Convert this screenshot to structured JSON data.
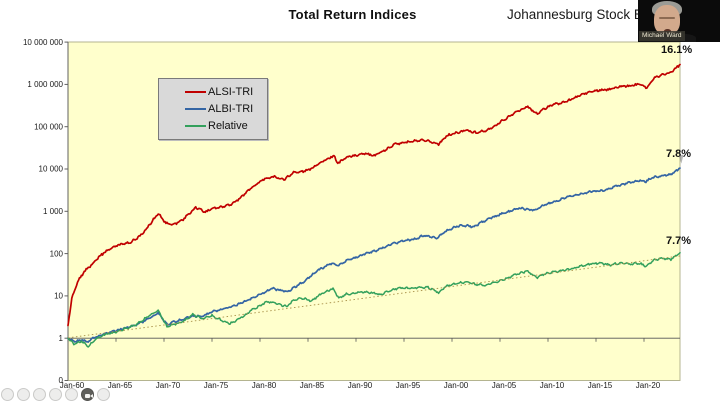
{
  "header": {
    "title": "Total Return Indices",
    "subtitle": "Johannesburg Stock Ex"
  },
  "video_overlay": {
    "participant_name": "Michael Ward"
  },
  "legend": {
    "items": [
      {
        "label": "ALSI-TRI",
        "color": "#c00000"
      },
      {
        "label": "ALBI-TRI",
        "color": "#3465a4"
      },
      {
        "label": "Relative",
        "color": "#33a05c"
      }
    ]
  },
  "toolbar": {
    "icons": [
      "pointer",
      "pen",
      "text",
      "eraser",
      "shapes",
      "camera",
      "more"
    ]
  },
  "chart_data": {
    "type": "line",
    "title": "Total Return Indices",
    "subtitle": "Johannesburg Stock Ex",
    "plot_background": "#ffffcc",
    "y_axis": {
      "scale": "log",
      "tick_labels": [
        "10 000 000",
        "1 000 000",
        "100 000",
        "10 000",
        "1 000",
        "100",
        "10",
        "1",
        "0"
      ],
      "tick_values": [
        10000000,
        1000000,
        100000,
        10000,
        1000,
        100,
        10,
        1,
        0.1
      ],
      "range": [
        0.1,
        10000000
      ]
    },
    "x_axis": {
      "tick_labels": [
        "Jan-60",
        "Jan-65",
        "Jan-70",
        "Jan-75",
        "Jan-80",
        "Jan-85",
        "Jan-90",
        "Jan-95",
        "Jan-00",
        "Jan-05",
        "Jan-10",
        "Jan-15",
        "Jan-20"
      ],
      "tick_years": [
        1960,
        1965,
        1970,
        1975,
        1980,
        1985,
        1990,
        1995,
        2000,
        2005,
        2010,
        2015,
        2020
      ],
      "range": [
        1960,
        2023.75
      ],
      "crosses_at_value": 1
    },
    "annotations": [
      {
        "text": "16.1%",
        "series": "ALSI-TRI"
      },
      {
        "text": "7.8%",
        "series": "ALBI-TRI"
      },
      {
        "text": "7.7%",
        "series": "Relative"
      }
    ],
    "trendline": {
      "series": "Relative",
      "style": "dotted",
      "color": "#a89048",
      "points": [
        [
          1960,
          1.02
        ],
        [
          2023.75,
          88
        ]
      ]
    },
    "series": [
      {
        "name": "ALSI-TRI",
        "color": "#c00000",
        "width": 1.7,
        "jitter": 1.6,
        "points": [
          [
            1960,
            2
          ],
          [
            1960.4,
            9
          ],
          [
            1961,
            22
          ],
          [
            1961.8,
            40
          ],
          [
            1962.5,
            55
          ],
          [
            1963.5,
            95
          ],
          [
            1964.5,
            135
          ],
          [
            1965.5,
            165
          ],
          [
            1966.5,
            185
          ],
          [
            1967.5,
            260
          ],
          [
            1968.5,
            480
          ],
          [
            1969.4,
            900
          ],
          [
            1970.2,
            520
          ],
          [
            1971,
            480
          ],
          [
            1972,
            640
          ],
          [
            1973.3,
            1250
          ],
          [
            1974.3,
            950
          ],
          [
            1975,
            1150
          ],
          [
            1976,
            1250
          ],
          [
            1977,
            1450
          ],
          [
            1978,
            2100
          ],
          [
            1979,
            3500
          ],
          [
            1980.5,
            6000
          ],
          [
            1981.5,
            6500
          ],
          [
            1982.5,
            5600
          ],
          [
            1983.5,
            8200
          ],
          [
            1984.5,
            8800
          ],
          [
            1985.5,
            10500
          ],
          [
            1986.5,
            15000
          ],
          [
            1987.7,
            21000
          ],
          [
            1988.1,
            13500
          ],
          [
            1989,
            19000
          ],
          [
            1990,
            21000
          ],
          [
            1991,
            23000
          ],
          [
            1992,
            21000
          ],
          [
            1993,
            28000
          ],
          [
            1994,
            38000
          ],
          [
            1995,
            42000
          ],
          [
            1996,
            46000
          ],
          [
            1997,
            50000
          ],
          [
            1998.6,
            38000
          ],
          [
            1999.5,
            62000
          ],
          [
            2000.5,
            72000
          ],
          [
            2001.5,
            82000
          ],
          [
            2002.5,
            72000
          ],
          [
            2003.5,
            80000
          ],
          [
            2004.5,
            105000
          ],
          [
            2005.5,
            150000
          ],
          [
            2006.5,
            210000
          ],
          [
            2007.8,
            300000
          ],
          [
            2008.9,
            200000
          ],
          [
            2009.5,
            260000
          ],
          [
            2010.5,
            330000
          ],
          [
            2011.5,
            370000
          ],
          [
            2012.5,
            450000
          ],
          [
            2013.5,
            580000
          ],
          [
            2014.5,
            680000
          ],
          [
            2015.5,
            740000
          ],
          [
            2016.5,
            760000
          ],
          [
            2017.5,
            900000
          ],
          [
            2018.5,
            920000
          ],
          [
            2019.5,
            1000000
          ],
          [
            2020.3,
            820000
          ],
          [
            2021,
            1400000
          ],
          [
            2022,
            1700000
          ],
          [
            2022.8,
            1900000
          ],
          [
            2023.3,
            2400000
          ],
          [
            2023.75,
            2950000
          ]
        ]
      },
      {
        "name": "ALBI-TRI",
        "color": "#3465a4",
        "width": 1.7,
        "jitter": 1.5,
        "points": [
          [
            1960,
            1
          ],
          [
            1960.7,
            0.85
          ],
          [
            1961.5,
            0.9
          ],
          [
            1962,
            0.82
          ],
          [
            1962.8,
            1.05
          ],
          [
            1964,
            1.3
          ],
          [
            1965,
            1.5
          ],
          [
            1966,
            1.75
          ],
          [
            1967,
            2.0
          ],
          [
            1968,
            2.6
          ],
          [
            1969.4,
            3.9
          ],
          [
            1970.3,
            2.1
          ],
          [
            1971,
            2.4
          ],
          [
            1972,
            2.8
          ],
          [
            1973,
            3.4
          ],
          [
            1974,
            3.3
          ],
          [
            1975,
            4.2
          ],
          [
            1976,
            4.8
          ],
          [
            1977,
            5.6
          ],
          [
            1978,
            6.8
          ],
          [
            1979,
            8.5
          ],
          [
            1980.7,
            13
          ],
          [
            1981.3,
            15
          ],
          [
            1982.8,
            12.5
          ],
          [
            1984,
            18
          ],
          [
            1985,
            26
          ],
          [
            1986,
            40
          ],
          [
            1987.5,
            60
          ],
          [
            1988.2,
            52
          ],
          [
            1989,
            68
          ],
          [
            1990,
            82
          ],
          [
            1991,
            100
          ],
          [
            1992,
            115
          ],
          [
            1993,
            145
          ],
          [
            1994,
            175
          ],
          [
            1995,
            205
          ],
          [
            1996,
            215
          ],
          [
            1997,
            265
          ],
          [
            1998.5,
            235
          ],
          [
            1999.3,
            330
          ],
          [
            2000,
            400
          ],
          [
            2001,
            470
          ],
          [
            2002.3,
            430
          ],
          [
            2003,
            540
          ],
          [
            2004,
            690
          ],
          [
            2005,
            840
          ],
          [
            2006,
            1000
          ],
          [
            2007,
            1180
          ],
          [
            2008.7,
            1050
          ],
          [
            2009.5,
            1380
          ],
          [
            2010.5,
            1650
          ],
          [
            2011.5,
            1950
          ],
          [
            2012.5,
            2350
          ],
          [
            2013.5,
            2550
          ],
          [
            2014.5,
            2950
          ],
          [
            2015.8,
            3100
          ],
          [
            2016.5,
            3550
          ],
          [
            2017.5,
            4150
          ],
          [
            2018.5,
            4750
          ],
          [
            2019.5,
            5400
          ],
          [
            2020.2,
            5100
          ],
          [
            2021,
            6400
          ],
          [
            2022,
            7000
          ],
          [
            2022.8,
            7600
          ],
          [
            2023.3,
            9000
          ],
          [
            2023.75,
            10500
          ]
        ]
      },
      {
        "name": "Relative",
        "color": "#33a05c",
        "width": 1.5,
        "jitter": 1.5,
        "points": [
          [
            1960,
            1
          ],
          [
            1960.6,
            0.72
          ],
          [
            1961.4,
            0.85
          ],
          [
            1962.1,
            0.65
          ],
          [
            1963,
            1.0
          ],
          [
            1964,
            1.25
          ],
          [
            1965,
            1.4
          ],
          [
            1966,
            1.7
          ],
          [
            1967,
            2.0
          ],
          [
            1968,
            2.9
          ],
          [
            1969.4,
            4.6
          ],
          [
            1970.3,
            1.9
          ],
          [
            1971,
            2.1
          ],
          [
            1972,
            2.5
          ],
          [
            1973,
            3.6
          ],
          [
            1974,
            2.9
          ],
          [
            1975,
            3.4
          ],
          [
            1976.8,
            2.2
          ],
          [
            1978,
            3.0
          ],
          [
            1979,
            4.4
          ],
          [
            1980.7,
            7.2
          ],
          [
            1981.5,
            6.8
          ],
          [
            1982.8,
            5.6
          ],
          [
            1983.5,
            8.0
          ],
          [
            1984.5,
            8.8
          ],
          [
            1985.3,
            7.6
          ],
          [
            1986.5,
            11.5
          ],
          [
            1987.6,
            14.8
          ],
          [
            1988.2,
            8.8
          ],
          [
            1989,
            11
          ],
          [
            1990.5,
            12.5
          ],
          [
            1991.5,
            12
          ],
          [
            1992.5,
            10.8
          ],
          [
            1993.5,
            13
          ],
          [
            1994.5,
            15.5
          ],
          [
            1995.5,
            15
          ],
          [
            1996.5,
            15.8
          ],
          [
            1997.5,
            16
          ],
          [
            1998.6,
            11.8
          ],
          [
            1999.5,
            17.5
          ],
          [
            2000.5,
            19.5
          ],
          [
            2001.5,
            21.5
          ],
          [
            2002.5,
            18.5
          ],
          [
            2003.5,
            17.8
          ],
          [
            2004.5,
            21
          ],
          [
            2005.5,
            25
          ],
          [
            2006.5,
            31
          ],
          [
            2007.8,
            39
          ],
          [
            2008.9,
            27
          ],
          [
            2009.5,
            32
          ],
          [
            2010.5,
            37
          ],
          [
            2011.5,
            40
          ],
          [
            2012.5,
            44
          ],
          [
            2013.5,
            51
          ],
          [
            2014.5,
            57
          ],
          [
            2015.5,
            60
          ],
          [
            2016.5,
            54
          ],
          [
            2017.5,
            61
          ],
          [
            2018.5,
            56
          ],
          [
            2019.5,
            59
          ],
          [
            2020.3,
            50
          ],
          [
            2021,
            72
          ],
          [
            2022,
            78
          ],
          [
            2022.8,
            72
          ],
          [
            2023.3,
            88
          ],
          [
            2023.75,
            105
          ]
        ]
      }
    ]
  }
}
